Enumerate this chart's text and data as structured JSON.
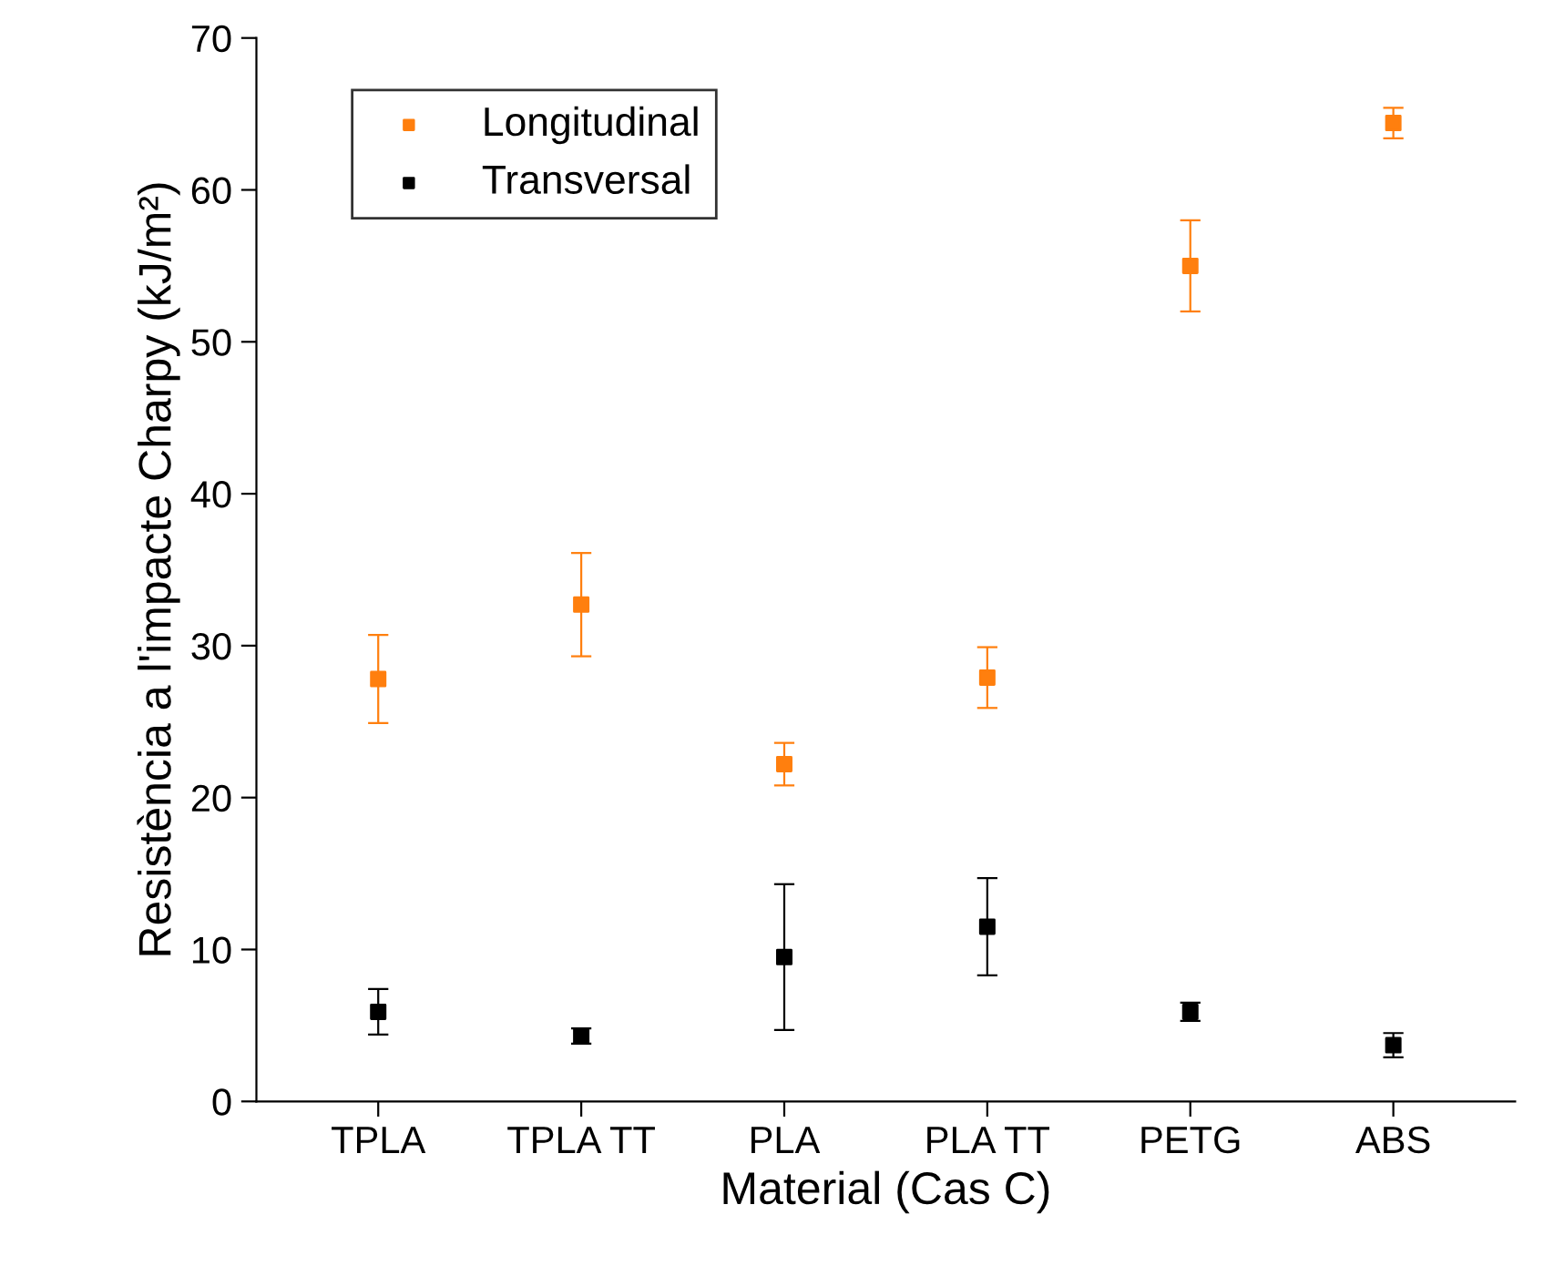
{
  "chart_data": {
    "type": "scatter",
    "xlabel": "Material (Cas C)",
    "ylabel": "Resistència a l'impacte Charpy (kJ/m²)",
    "categories": [
      "TPLA",
      "TPLA TT",
      "PLA",
      "PLA TT",
      "PETG",
      "ABS"
    ],
    "series": [
      {
        "name": "Longitudinal",
        "color": "#ff7f0e",
        "values": [
          27.8,
          32.7,
          22.2,
          27.9,
          55.0,
          64.4
        ],
        "errors": [
          2.9,
          3.4,
          1.4,
          2.0,
          3.0,
          1.0
        ]
      },
      {
        "name": "Transversal",
        "color": "#000000",
        "values": [
          5.9,
          4.3,
          9.5,
          11.5,
          5.9,
          3.7
        ],
        "errors": [
          1.5,
          0.5,
          4.8,
          3.2,
          0.6,
          0.8
        ]
      }
    ],
    "ylim": [
      0,
      70
    ],
    "yticks": [
      0,
      10,
      20,
      30,
      40,
      50,
      60,
      70
    ],
    "grid": false,
    "legend": "top left",
    "marker": "square"
  }
}
